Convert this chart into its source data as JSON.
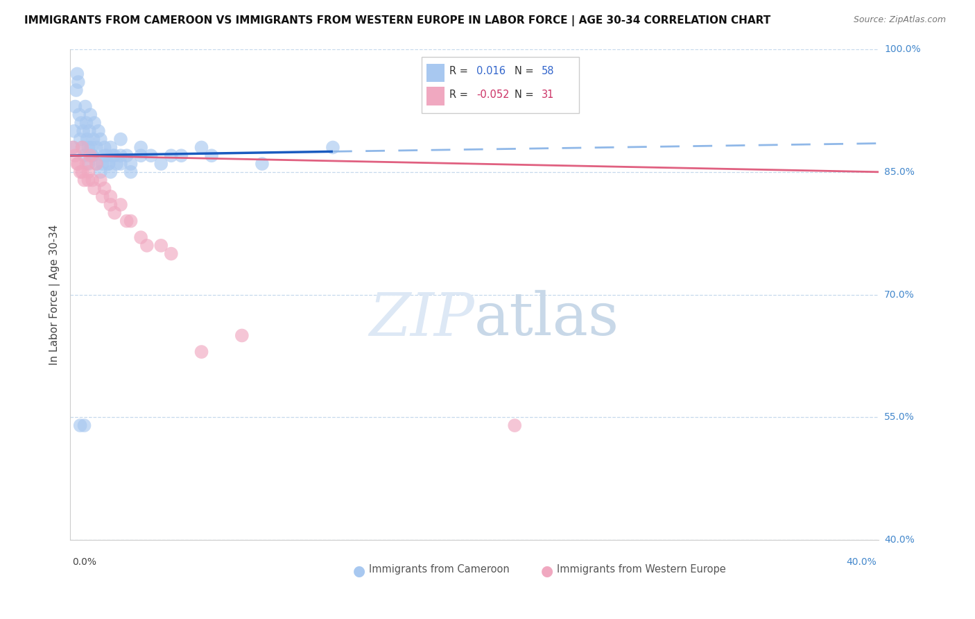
{
  "title": "IMMIGRANTS FROM CAMEROON VS IMMIGRANTS FROM WESTERN EUROPE IN LABOR FORCE | AGE 30-34 CORRELATION CHART",
  "source": "Source: ZipAtlas.com",
  "ylabel": "In Labor Force | Age 30-34",
  "y_ticks": [
    40.0,
    55.0,
    70.0,
    85.0,
    100.0
  ],
  "x_min": 0.0,
  "x_max": 40.0,
  "y_min": 40.0,
  "y_max": 100.0,
  "R_cameroon": 0.016,
  "N_cameroon": 58,
  "R_western": -0.052,
  "N_western": 31,
  "cameroon_color": "#a8c8f0",
  "western_color": "#f0a8c0",
  "cameroon_line_color": "#1a5bbf",
  "western_line_color": "#e06080",
  "cameroon_dash_color": "#90b8e8",
  "background_color": "#ffffff",
  "watermark_color": "#dde8f5",
  "cam_x": [
    0.15,
    0.2,
    0.25,
    0.3,
    0.35,
    0.4,
    0.45,
    0.5,
    0.55,
    0.6,
    0.65,
    0.7,
    0.75,
    0.8,
    0.85,
    0.9,
    0.95,
    1.0,
    1.05,
    1.1,
    1.15,
    1.2,
    1.3,
    1.4,
    1.5,
    1.6,
    1.7,
    1.8,
    1.9,
    2.0,
    2.2,
    2.5,
    2.8,
    3.0,
    3.5,
    4.0,
    4.5,
    5.0,
    2.0,
    2.5,
    3.0,
    5.5,
    6.5,
    7.0,
    9.5,
    13.0,
    0.5,
    0.7,
    0.9,
    1.1,
    1.3,
    1.5,
    1.7,
    1.9,
    2.1,
    2.3,
    2.5,
    3.5
  ],
  "cam_y": [
    88,
    90,
    93,
    95,
    97,
    96,
    92,
    89,
    91,
    88,
    90,
    87,
    93,
    91,
    89,
    88,
    90,
    92,
    88,
    87,
    89,
    91,
    88,
    90,
    89,
    86,
    88,
    87,
    86,
    88,
    87,
    89,
    87,
    86,
    88,
    87,
    86,
    87,
    85,
    86,
    85,
    87,
    88,
    87,
    86,
    88,
    54,
    54,
    86,
    87,
    86,
    85,
    87,
    86,
    87,
    86,
    87,
    87
  ],
  "wes_x": [
    0.15,
    0.25,
    0.35,
    0.5,
    0.6,
    0.7,
    0.8,
    0.9,
    1.0,
    1.1,
    1.3,
    1.5,
    1.7,
    2.0,
    2.2,
    2.5,
    3.0,
    3.5,
    4.5,
    5.0,
    6.5,
    8.5,
    0.4,
    0.6,
    0.9,
    1.2,
    1.6,
    2.0,
    2.8,
    3.8,
    22.0
  ],
  "wes_y": [
    88,
    87,
    86,
    85,
    88,
    84,
    86,
    85,
    87,
    84,
    86,
    84,
    83,
    82,
    80,
    81,
    79,
    77,
    76,
    75,
    63,
    65,
    86,
    85,
    84,
    83,
    82,
    81,
    79,
    76,
    54
  ],
  "cam_trend_x0": 0.0,
  "cam_trend_y0": 87.0,
  "cam_trend_x1": 13.0,
  "cam_trend_y1": 87.5,
  "cam_dash_x0": 13.0,
  "cam_dash_y0": 87.5,
  "cam_dash_x1": 40.0,
  "cam_dash_y1": 88.5,
  "wes_trend_x0": 0.0,
  "wes_trend_y0": 87.0,
  "wes_trend_x1": 40.0,
  "wes_trend_y1": 85.0
}
